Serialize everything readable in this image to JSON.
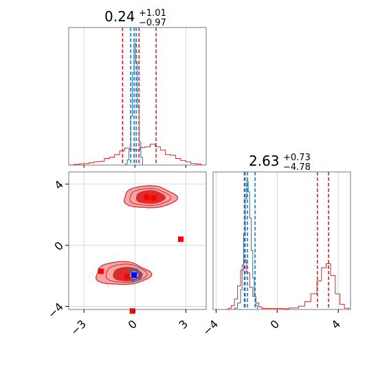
{
  "chart_data": {
    "type": "corner",
    "parameters": [
      {
        "title_value": "0.24",
        "title_plus": "+1.01",
        "title_minus": "−0.97",
        "ticks": [
          -3,
          0,
          3
        ],
        "tick_labels": [
          "−3",
          "0",
          "3"
        ],
        "range": [
          -3.9,
          4.2
        ]
      },
      {
        "title_value": "2.63",
        "title_plus": "+0.73",
        "title_minus": "−4.78",
        "ticks": [
          -4,
          0,
          4
        ],
        "tick_labels": [
          "−4",
          "0",
          "4"
        ],
        "range": [
          -4.2,
          4.8
        ]
      }
    ],
    "grid": true,
    "colors": {
      "red": "#d62728",
      "blue": "#1f77b4",
      "red_fill_light": "#f4a6a7",
      "red_fill_dark": "#e02a2c"
    },
    "red_quantile_lines": {
      "param1": [
        -0.73,
        0.24,
        1.25
      ],
      "param2": [
        -2.15,
        2.63,
        3.36
      ]
    },
    "blue_quantile_lines": {
      "param1": [
        -0.25,
        -0.05,
        0.08
      ],
      "param2": [
        -2.1,
        -1.95,
        -1.45
      ]
    },
    "red_markers": [
      {
        "x": -2.0,
        "y": -1.7
      },
      {
        "x": -0.45,
        "y": -2.05
      },
      {
        "x": 0.7,
        "y": 3.15
      },
      {
        "x": 1.1,
        "y": 3.1
      },
      {
        "x": 2.7,
        "y": 0.4
      },
      {
        "x": -0.15,
        "y": -4.3
      }
    ],
    "blue_marker": {
      "x": -0.05,
      "y": -1.95
    },
    "red_hist1": [
      [
        -3.9,
        0.0
      ],
      [
        -3.6,
        0.005
      ],
      [
        -3.3,
        0.009
      ],
      [
        -3.0,
        0.012
      ],
      [
        -2.7,
        0.018
      ],
      [
        -2.4,
        0.025
      ],
      [
        -2.1,
        0.028
      ],
      [
        -1.8,
        0.05
      ],
      [
        -1.5,
        0.06
      ],
      [
        -1.2,
        0.08
      ],
      [
        -0.9,
        0.11
      ],
      [
        -0.6,
        0.13
      ],
      [
        -0.3,
        0.12
      ],
      [
        0.0,
        0.115
      ],
      [
        0.3,
        0.135
      ],
      [
        0.6,
        0.14
      ],
      [
        0.9,
        0.16
      ],
      [
        1.2,
        0.14
      ],
      [
        1.5,
        0.115
      ],
      [
        1.8,
        0.08
      ],
      [
        2.1,
        0.075
      ],
      [
        2.4,
        0.05
      ],
      [
        2.7,
        0.035
      ],
      [
        3.0,
        0.025
      ],
      [
        3.3,
        0.012
      ],
      [
        3.6,
        0.007
      ],
      [
        3.9,
        0.0
      ]
    ],
    "blue_hist1": [
      [
        -0.55,
        0.01
      ],
      [
        -0.45,
        0.04
      ],
      [
        -0.35,
        0.12
      ],
      [
        -0.25,
        0.38
      ],
      [
        -0.15,
        0.72
      ],
      [
        -0.05,
        0.95
      ],
      [
        0.05,
        0.8
      ],
      [
        0.15,
        0.45
      ],
      [
        0.25,
        0.18
      ],
      [
        0.35,
        0.06
      ],
      [
        0.45,
        0.015
      ]
    ],
    "red_hist2": [
      [
        -3.4,
        0.0
      ],
      [
        -3.2,
        0.01
      ],
      [
        -3.0,
        0.03
      ],
      [
        -2.8,
        0.08
      ],
      [
        -2.6,
        0.18
      ],
      [
        -2.4,
        0.3
      ],
      [
        -2.2,
        0.38
      ],
      [
        -2.0,
        0.28
      ],
      [
        -1.8,
        0.17
      ],
      [
        -1.6,
        0.1
      ],
      [
        -1.4,
        0.05
      ],
      [
        -1.2,
        0.02
      ],
      [
        -1.0,
        0.008
      ],
      [
        0.4,
        0.005
      ],
      [
        0.8,
        0.012
      ],
      [
        1.4,
        0.025
      ],
      [
        1.8,
        0.06
      ],
      [
        2.2,
        0.12
      ],
      [
        2.6,
        0.22
      ],
      [
        2.9,
        0.32
      ],
      [
        3.2,
        0.35
      ],
      [
        3.5,
        0.26
      ],
      [
        3.8,
        0.12
      ],
      [
        4.1,
        0.04
      ],
      [
        4.4,
        0.01
      ],
      [
        4.7,
        0.0
      ]
    ],
    "blue_hist2": [
      [
        -2.8,
        0.01
      ],
      [
        -2.6,
        0.05
      ],
      [
        -2.4,
        0.15
      ],
      [
        -2.3,
        0.34
      ],
      [
        -2.2,
        0.58
      ],
      [
        -2.1,
        0.85
      ],
      [
        -2.0,
        0.98
      ],
      [
        -1.9,
        0.9
      ],
      [
        -1.8,
        0.7
      ],
      [
        -1.7,
        0.45
      ],
      [
        -1.6,
        0.24
      ],
      [
        -1.5,
        0.1
      ],
      [
        -1.4,
        0.03
      ],
      [
        -1.3,
        0.01
      ]
    ]
  }
}
